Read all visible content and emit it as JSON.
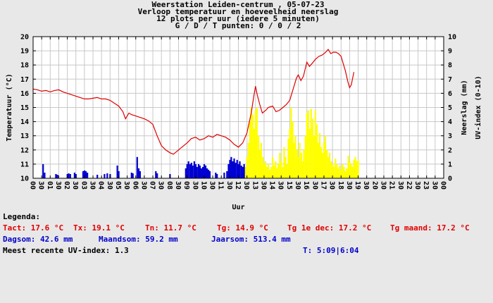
{
  "header": {
    "line1": "Weerstation Leiden-centrum , 05-07-23",
    "line2": "Verloop temperatuur en hoeveelheid neerslag",
    "line3": "12 plots per uur (iedere 5 minuten)",
    "line4": "G / D / T punten: 0 / 0 / 2"
  },
  "chart_data": {
    "type": "line+bar",
    "x_axis": {
      "label": "Uur",
      "min": 0,
      "max": 24,
      "hour_labels": [
        "00",
        "01",
        "02",
        "03",
        "04",
        "05",
        "06",
        "07",
        "08",
        "09",
        "10",
        "11",
        "12",
        "13",
        "14",
        "15",
        "16",
        "17",
        "18",
        "19",
        "20",
        "21",
        "22",
        "23",
        "00"
      ],
      "half_hour_label": "30"
    },
    "y_left": {
      "label": "Temperatuur (°C)",
      "min": 10,
      "max": 20,
      "tick_step": 1
    },
    "y_right": {
      "label_inner": "Neerslag (mm)",
      "label_outer": "UV-index (0-10)",
      "min": 0,
      "max": 10,
      "tick_step": 1
    },
    "temperature_series": {
      "name": "Temperatuur",
      "color": "#e00000",
      "points": [
        [
          0,
          16.3
        ],
        [
          0.25,
          16.25
        ],
        [
          0.5,
          16.15
        ],
        [
          0.75,
          16.2
        ],
        [
          1,
          16.1
        ],
        [
          1.25,
          16.2
        ],
        [
          1.5,
          16.25
        ],
        [
          1.75,
          16.1
        ],
        [
          2,
          16.0
        ],
        [
          2.25,
          15.9
        ],
        [
          2.5,
          15.8
        ],
        [
          2.75,
          15.7
        ],
        [
          3,
          15.6
        ],
        [
          3.25,
          15.6
        ],
        [
          3.5,
          15.65
        ],
        [
          3.75,
          15.7
        ],
        [
          4,
          15.6
        ],
        [
          4.25,
          15.6
        ],
        [
          4.5,
          15.5
        ],
        [
          4.75,
          15.3
        ],
        [
          5,
          15.1
        ],
        [
          5.25,
          14.7
        ],
        [
          5.4,
          14.2
        ],
        [
          5.6,
          14.6
        ],
        [
          5.75,
          14.5
        ],
        [
          6,
          14.4
        ],
        [
          6.25,
          14.3
        ],
        [
          6.5,
          14.2
        ],
        [
          6.75,
          14.05
        ],
        [
          7,
          13.8
        ],
        [
          7.25,
          13.0
        ],
        [
          7.5,
          12.3
        ],
        [
          7.75,
          12.0
        ],
        [
          8,
          11.8
        ],
        [
          8.2,
          11.7
        ],
        [
          8.4,
          11.9
        ],
        [
          8.6,
          12.1
        ],
        [
          8.8,
          12.3
        ],
        [
          9,
          12.5
        ],
        [
          9.25,
          12.8
        ],
        [
          9.5,
          12.9
        ],
        [
          9.75,
          12.7
        ],
        [
          10,
          12.8
        ],
        [
          10.25,
          13.0
        ],
        [
          10.5,
          12.9
        ],
        [
          10.75,
          13.1
        ],
        [
          11,
          13.0
        ],
        [
          11.25,
          12.9
        ],
        [
          11.5,
          12.7
        ],
        [
          11.75,
          12.4
        ],
        [
          12,
          12.2
        ],
        [
          12.25,
          12.5
        ],
        [
          12.5,
          13.2
        ],
        [
          12.75,
          14.6
        ],
        [
          12.9,
          15.8
        ],
        [
          13,
          16.5
        ],
        [
          13.1,
          15.9
        ],
        [
          13.25,
          15.2
        ],
        [
          13.4,
          14.6
        ],
        [
          13.6,
          14.8
        ],
        [
          13.75,
          15.0
        ],
        [
          14,
          15.1
        ],
        [
          14.2,
          14.7
        ],
        [
          14.4,
          14.8
        ],
        [
          14.6,
          15.0
        ],
        [
          14.8,
          15.2
        ],
        [
          15,
          15.5
        ],
        [
          15.2,
          16.3
        ],
        [
          15.4,
          17.1
        ],
        [
          15.5,
          17.3
        ],
        [
          15.65,
          16.9
        ],
        [
          15.8,
          17.2
        ],
        [
          16,
          18.2
        ],
        [
          16.15,
          17.9
        ],
        [
          16.3,
          18.1
        ],
        [
          16.5,
          18.4
        ],
        [
          16.7,
          18.6
        ],
        [
          16.9,
          18.7
        ],
        [
          17.1,
          18.9
        ],
        [
          17.25,
          19.1
        ],
        [
          17.4,
          18.8
        ],
        [
          17.55,
          18.9
        ],
        [
          17.7,
          18.9
        ],
        [
          17.85,
          18.8
        ],
        [
          18,
          18.6
        ],
        [
          18.1,
          18.2
        ],
        [
          18.25,
          17.6
        ],
        [
          18.4,
          16.8
        ],
        [
          18.5,
          16.4
        ],
        [
          18.6,
          16.6
        ],
        [
          18.75,
          17.5
        ]
      ]
    },
    "rain_series": {
      "name": "Neerslag",
      "color": "#0000d0",
      "bars": [
        [
          0.58,
          1.0
        ],
        [
          0.67,
          0.4
        ],
        [
          1.33,
          0.3
        ],
        [
          1.42,
          0.25
        ],
        [
          2.0,
          0.3
        ],
        [
          2.08,
          0.35
        ],
        [
          2.17,
          0.3
        ],
        [
          2.42,
          0.4
        ],
        [
          2.5,
          0.3
        ],
        [
          2.92,
          0.5
        ],
        [
          3.0,
          0.55
        ],
        [
          3.08,
          0.5
        ],
        [
          3.17,
          0.4
        ],
        [
          3.75,
          0.25
        ],
        [
          4.17,
          0.3
        ],
        [
          4.33,
          0.35
        ],
        [
          4.5,
          0.3
        ],
        [
          4.92,
          0.9
        ],
        [
          5.0,
          0.5
        ],
        [
          5.75,
          0.4
        ],
        [
          5.83,
          0.35
        ],
        [
          6.08,
          1.5
        ],
        [
          6.17,
          0.7
        ],
        [
          6.25,
          0.5
        ],
        [
          7.17,
          0.5
        ],
        [
          7.25,
          0.35
        ],
        [
          8.0,
          0.3
        ],
        [
          8.92,
          0.7
        ],
        [
          9.0,
          1.0
        ],
        [
          9.08,
          1.2
        ],
        [
          9.17,
          1.0
        ],
        [
          9.25,
          1.1
        ],
        [
          9.33,
          0.9
        ],
        [
          9.42,
          1.2
        ],
        [
          9.5,
          1.0
        ],
        [
          9.58,
          0.8
        ],
        [
          9.67,
          1.0
        ],
        [
          9.75,
          0.9
        ],
        [
          9.83,
          0.7
        ],
        [
          9.92,
          0.8
        ],
        [
          10.0,
          1.0
        ],
        [
          10.08,
          0.9
        ],
        [
          10.17,
          0.7
        ],
        [
          10.25,
          0.6
        ],
        [
          10.33,
          0.5
        ],
        [
          10.67,
          0.4
        ],
        [
          10.75,
          0.3
        ],
        [
          11.17,
          0.4
        ],
        [
          11.33,
          0.5
        ],
        [
          11.42,
          1.0
        ],
        [
          11.5,
          1.3
        ],
        [
          11.58,
          1.5
        ],
        [
          11.67,
          1.2
        ],
        [
          11.75,
          1.4
        ],
        [
          11.83,
          1.1
        ],
        [
          11.92,
          1.3
        ],
        [
          12.0,
          1.0
        ],
        [
          12.08,
          1.2
        ],
        [
          12.17,
          0.9
        ],
        [
          12.25,
          0.8
        ],
        [
          12.33,
          1.0
        ]
      ]
    },
    "uv_series": {
      "name": "UV-index",
      "color": "#ffff00",
      "bars": [
        [
          12.42,
          0.8
        ],
        [
          12.5,
          1.5
        ],
        [
          12.58,
          2.5
        ],
        [
          12.67,
          4.0
        ],
        [
          12.75,
          5.0
        ],
        [
          12.83,
          4.5
        ],
        [
          12.92,
          3.5
        ],
        [
          13.0,
          4.8
        ],
        [
          13.08,
          5.0
        ],
        [
          13.17,
          3.0
        ],
        [
          13.25,
          2.0
        ],
        [
          13.33,
          2.5
        ],
        [
          13.42,
          1.5
        ],
        [
          13.5,
          1.0
        ],
        [
          13.58,
          1.2
        ],
        [
          13.67,
          0.8
        ],
        [
          13.75,
          1.0
        ],
        [
          13.83,
          0.6
        ],
        [
          13.92,
          0.8
        ],
        [
          14.0,
          1.5
        ],
        [
          14.08,
          0.9
        ],
        [
          14.17,
          1.2
        ],
        [
          14.25,
          0.7
        ],
        [
          14.33,
          1.0
        ],
        [
          14.42,
          1.8
        ],
        [
          14.5,
          1.2
        ],
        [
          14.58,
          0.8
        ],
        [
          14.67,
          2.2
        ],
        [
          14.75,
          1.5
        ],
        [
          14.83,
          1.0
        ],
        [
          14.92,
          2.8
        ],
        [
          15.0,
          3.5
        ],
        [
          15.08,
          5.0
        ],
        [
          15.17,
          4.0
        ],
        [
          15.25,
          2.5
        ],
        [
          15.33,
          3.0
        ],
        [
          15.42,
          2.0
        ],
        [
          15.5,
          1.5
        ],
        [
          15.58,
          2.5
        ],
        [
          15.67,
          1.8
        ],
        [
          15.75,
          1.2
        ],
        [
          15.83,
          2.0
        ],
        [
          15.92,
          3.0
        ],
        [
          16.0,
          4.6
        ],
        [
          16.08,
          4.8
        ],
        [
          16.17,
          3.5
        ],
        [
          16.25,
          4.9
        ],
        [
          16.33,
          4.2
        ],
        [
          16.42,
          3.0
        ],
        [
          16.5,
          4.8
        ],
        [
          16.58,
          3.8
        ],
        [
          16.67,
          2.5
        ],
        [
          16.75,
          3.2
        ],
        [
          16.83,
          2.2
        ],
        [
          16.92,
          1.8
        ],
        [
          17.0,
          2.5
        ],
        [
          17.08,
          3.0
        ],
        [
          17.17,
          2.0
        ],
        [
          17.25,
          1.5
        ],
        [
          17.33,
          1.8
        ],
        [
          17.42,
          1.2
        ],
        [
          17.5,
          1.0
        ],
        [
          17.58,
          0.8
        ],
        [
          17.67,
          1.4
        ],
        [
          17.75,
          1.0
        ],
        [
          17.83,
          0.7
        ],
        [
          17.92,
          0.9
        ],
        [
          18.0,
          0.6
        ],
        [
          18.08,
          1.0
        ],
        [
          18.17,
          0.8
        ],
        [
          18.25,
          0.5
        ],
        [
          18.33,
          0.7
        ],
        [
          18.42,
          1.6
        ],
        [
          18.5,
          1.2
        ],
        [
          18.58,
          1.0
        ],
        [
          18.67,
          0.8
        ],
        [
          18.75,
          1.3
        ],
        [
          18.83,
          1.5
        ],
        [
          18.92,
          1.2
        ],
        [
          19.0,
          1.3
        ]
      ]
    }
  },
  "legend": {
    "heading": "Legenda:",
    "temp_stats": [
      "Tact: 17.6 °C",
      "Tx: 19.1 °C",
      "Tn: 11.7 °C",
      "Tg: 14.9 °C",
      "Tg 1e dec: 17.2 °C",
      "Tg maand: 17.2 °C"
    ],
    "rain_stats": [
      "Dagsom: 42.6 mm",
      "Maandsom: 59.2 mm",
      "Jaarsom: 513.4 mm"
    ],
    "uv_note": "Meest recente UV-index: 1.3",
    "time_note": "T: 5:09|6:04"
  },
  "colors": {
    "background": "#e8e8e8",
    "plot_background": "#ffffff",
    "grid": "#c8c8c8",
    "temperature_line": "#e00000",
    "rain_bar": "#0000d0",
    "uv_bar": "#ffff00",
    "red_text": "#e00000",
    "blue_text": "#0000c8"
  }
}
